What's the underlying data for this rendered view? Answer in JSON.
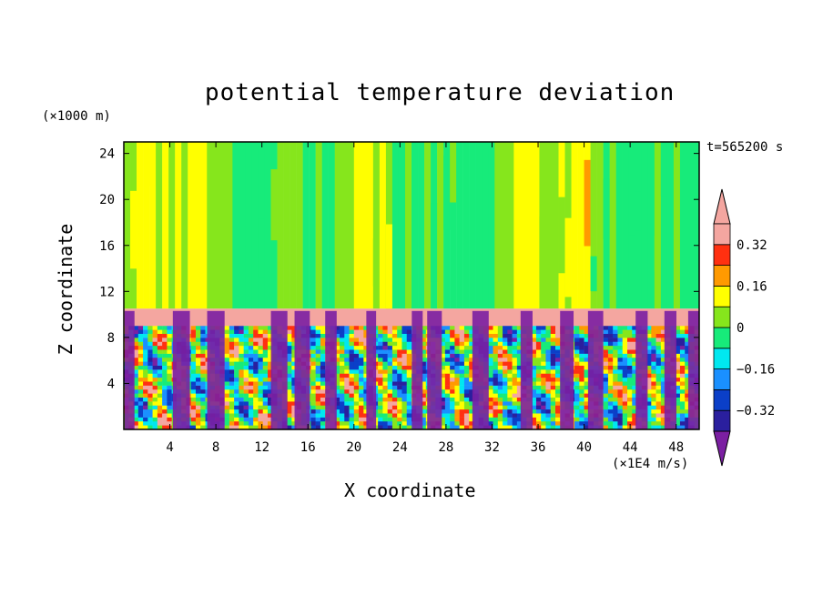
{
  "chart_data": {
    "type": "heatmap",
    "title": "potential temperature deviation",
    "xlabel": "X coordinate",
    "ylabel": "Z coordinate",
    "x_unit": "(×1E4 m/s)",
    "y_unit": "(×1000 m)",
    "time_label": "t=565200 s",
    "xlim": [
      0,
      50
    ],
    "ylim": [
      0,
      25
    ],
    "x_ticks": [
      4,
      8,
      12,
      16,
      20,
      24,
      28,
      32,
      36,
      40,
      44,
      48
    ],
    "y_ticks": [
      4,
      8,
      12,
      16,
      20,
      24
    ],
    "colorbar": {
      "levels": [
        -0.4,
        -0.32,
        -0.24,
        -0.16,
        -0.08,
        0,
        0.08,
        0.16,
        0.24,
        0.32,
        0.4
      ],
      "tick_labels": [
        "0.32",
        "0.16",
        "0",
        "−0.16",
        "−0.32"
      ],
      "tick_values": [
        0.32,
        0.16,
        0,
        -0.16,
        -0.32
      ],
      "colors": {
        "below_min": "#7b1fa2",
        "n032_n024": "#2a1f9e",
        "n024_n016": "#0b3fc8",
        "n016_n008": "#1a90ff",
        "n008_0": "#00e8f0",
        "0_008": "#17eb7a",
        "008_016": "#86e61c",
        "016_024": "#ffff00",
        "024_032": "#ff9a00",
        "032_040": "#ff3010",
        "above_max": "#f4a6a0"
      }
    },
    "structure": {
      "stratosphere_top_z": 10.5,
      "tropopause_band_z": [
        9.0,
        10.5
      ],
      "tropopause_band_value": "above_max",
      "upper_region_value_range": [
        -0.08,
        0.24
      ],
      "lower_region_value_range": [
        -0.4,
        0.4
      ]
    }
  }
}
